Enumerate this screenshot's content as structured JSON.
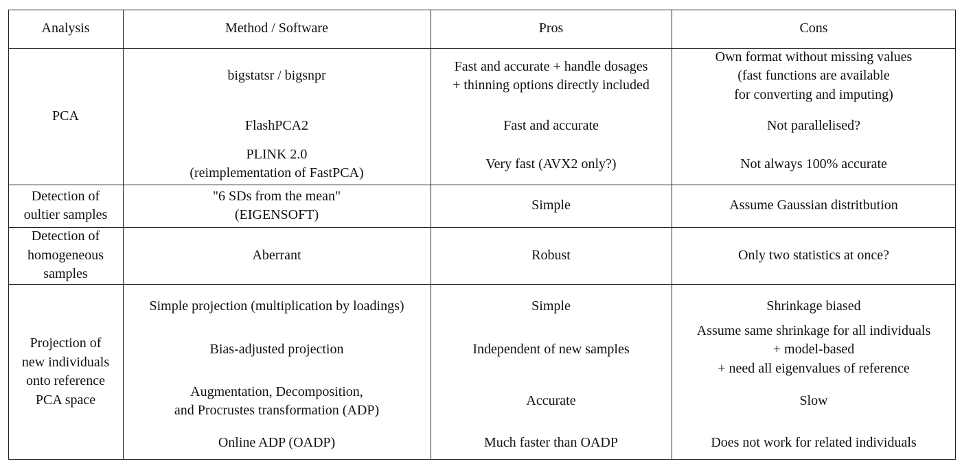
{
  "header": {
    "analysis": "Analysis",
    "method": "Method / Software",
    "pros": "Pros",
    "cons": "Cons"
  },
  "pca": {
    "label": "PCA",
    "rows": [
      {
        "method": "bigstatsr / bigsnpr",
        "pros": "Fast and accurate + handle dosages\n+ thinning options directly included",
        "cons": "Own format without missing values\n(fast functions are available\nfor converting and imputing)"
      },
      {
        "method": "FlashPCA2",
        "pros": "Fast and accurate",
        "cons": "Not parallelised?"
      },
      {
        "method": "PLINK 2.0\n(reimplementation of FastPCA)",
        "pros": "Very fast (AVX2 only?)",
        "cons": "Not always 100% accurate"
      }
    ]
  },
  "outlier": {
    "label": "Detection of\noultier samples",
    "method": "\"6 SDs from the mean\"\n(EIGENSOFT)",
    "pros": "Simple",
    "cons": "Assume Gaussian distritbution"
  },
  "homogeneous": {
    "label": "Detection of\nhomogeneous\nsamples",
    "method": "Aberrant",
    "pros": "Robust",
    "cons": "Only two statistics at once?"
  },
  "projection": {
    "label": "Projection of\nnew individuals\nonto reference\nPCA space",
    "rows": [
      {
        "method": "Simple projection (multiplication by loadings)",
        "pros": "Simple",
        "cons": "Shrinkage biased"
      },
      {
        "method": "Bias-adjusted projection",
        "pros": "Independent of new samples",
        "cons": "Assume same shrinkage for all individuals\n+ model-based\n+ need all eigenvalues of reference"
      },
      {
        "method": "Augmentation, Decomposition,\nand Procrustes transformation (ADP)",
        "pros": "Accurate",
        "cons": "Slow"
      },
      {
        "method": "Online ADP (OADP)",
        "pros": "Much faster than OADP",
        "cons": "Does not work for related individuals"
      }
    ]
  }
}
